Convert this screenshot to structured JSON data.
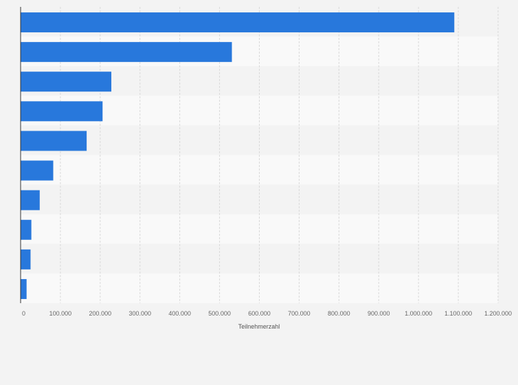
{
  "chart_data": {
    "type": "bar",
    "orientation": "horizontal",
    "title": "",
    "xlabel": "Teilnehmerzahl",
    "ylabel": "",
    "xlim": [
      0,
      1200000
    ],
    "x_ticks": [
      0,
      100000,
      200000,
      300000,
      400000,
      500000,
      600000,
      700000,
      800000,
      900000,
      1000000,
      1100000,
      1200000
    ],
    "x_tick_labels": [
      "0",
      "100.000",
      "200.000",
      "300.000",
      "400.000",
      "500.000",
      "600.000",
      "700.000",
      "800.000",
      "900.000",
      "1.000.000",
      "1.100.000",
      "1.200.000"
    ],
    "categories": [
      "",
      "",
      "",
      "",
      "",
      "",
      "",
      "",
      "",
      ""
    ],
    "values": [
      1090000,
      531000,
      228000,
      206000,
      166000,
      82000,
      48000,
      27000,
      25000,
      15000
    ],
    "grid": true,
    "colors": {
      "bar": "#2878dc",
      "background": "#f3f3f3",
      "band_light": "#f9f9f9",
      "band_dark": "#f3f3f3",
      "grid": "#d9d9d9",
      "axis": "#333333"
    }
  }
}
